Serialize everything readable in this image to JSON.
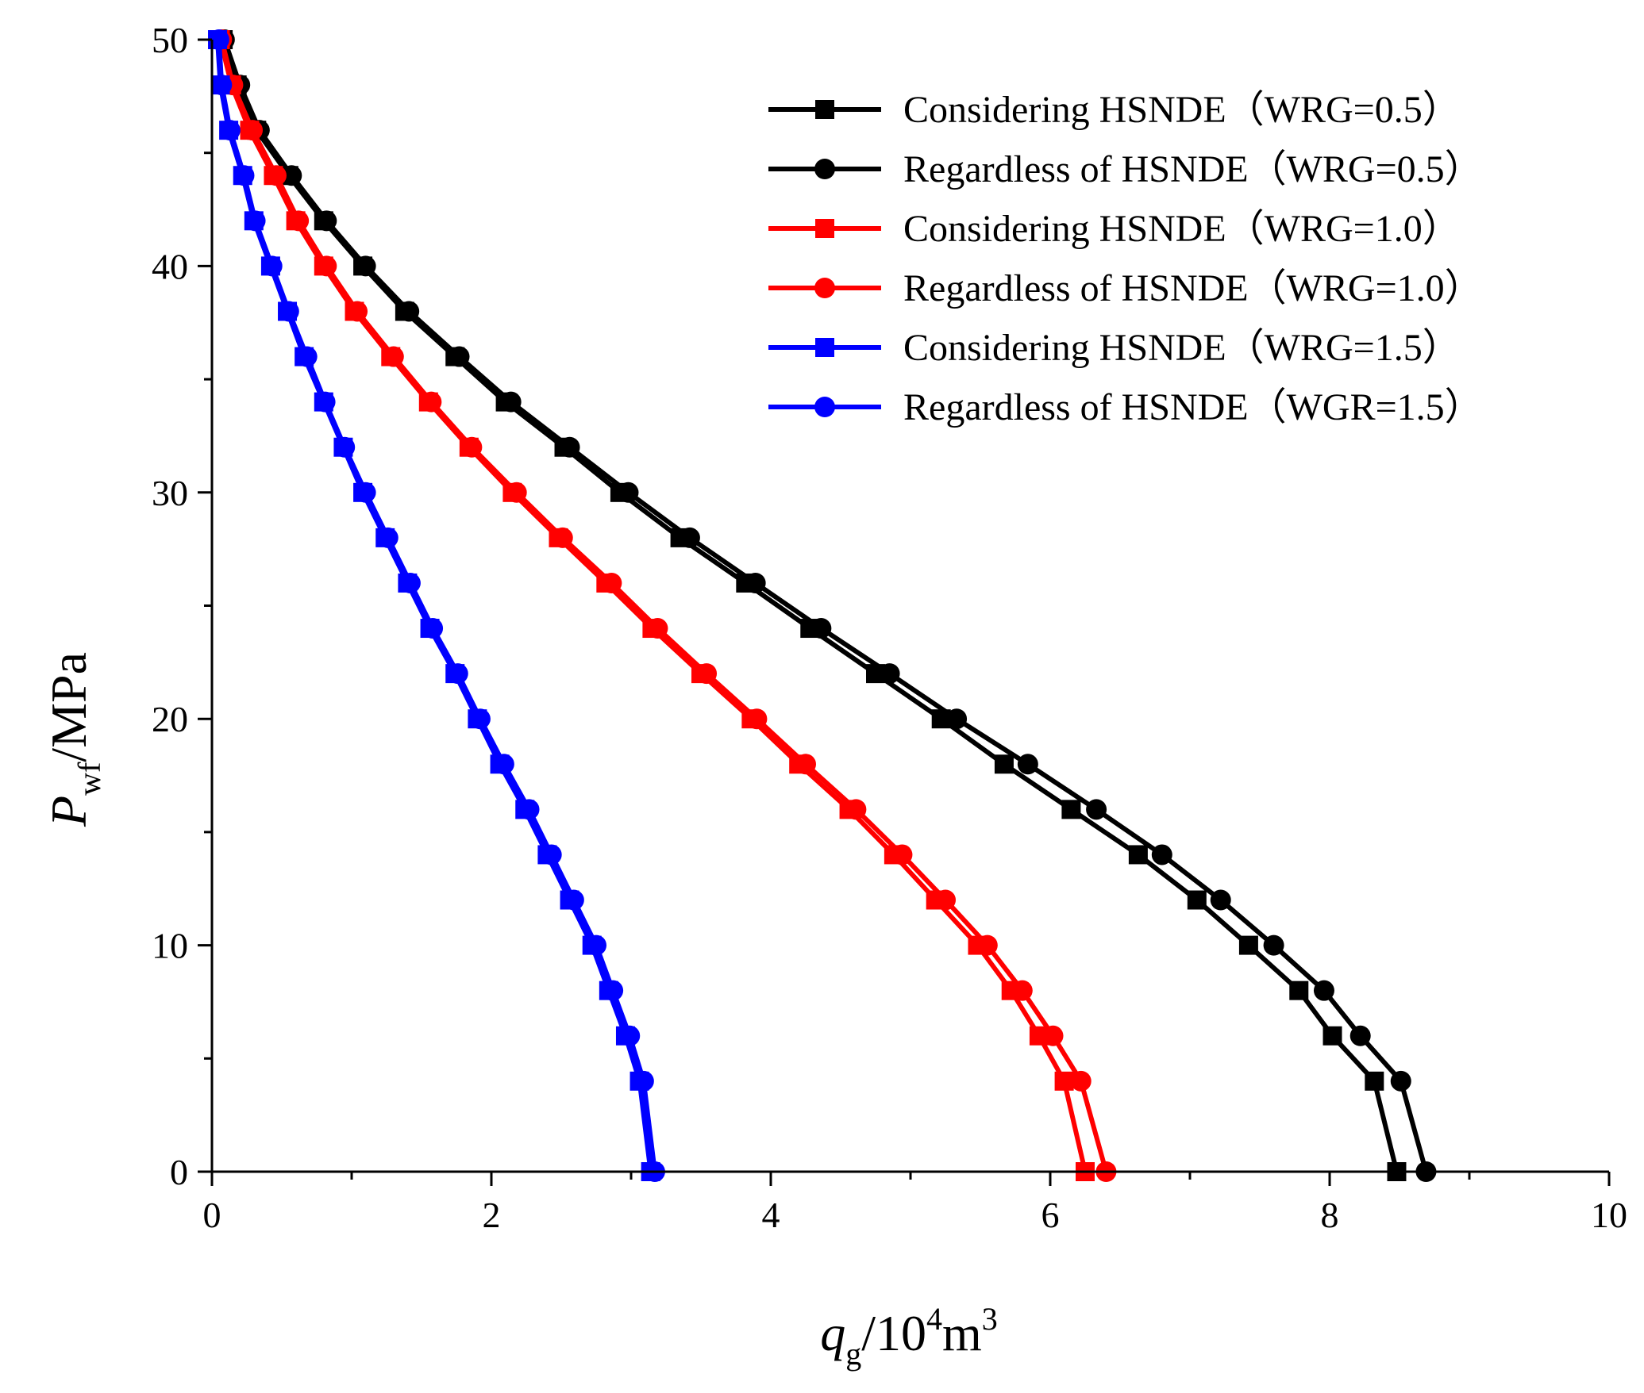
{
  "chart_data": {
    "type": "line",
    "title": "",
    "xlabel": {
      "main": "q",
      "sub": "g",
      "rest": "/10",
      "sup": "4",
      "unit": "m",
      "unit_sup": "3"
    },
    "ylabel": {
      "main": "P",
      "sub": "wf",
      "rest": "/MPa"
    },
    "xlim": [
      0,
      10
    ],
    "ylim": [
      0,
      50
    ],
    "xticks": [
      "0",
      "2",
      "4",
      "6",
      "8",
      "10"
    ],
    "yticks": [
      "0",
      "10",
      "20",
      "30",
      "40",
      "50"
    ],
    "legend_position": "top-right",
    "y": [
      50,
      48,
      46,
      44,
      42,
      40,
      38,
      36,
      34,
      32,
      30,
      28,
      26,
      24,
      22,
      20,
      18,
      16,
      14,
      12,
      10,
      8,
      6,
      4,
      0
    ],
    "series": [
      {
        "name": "Considering HSNDE（WRG=0.5）",
        "color": "#000000",
        "marker": "square",
        "x": [
          0.08,
          0.18,
          0.32,
          0.55,
          0.8,
          1.08,
          1.38,
          1.74,
          2.1,
          2.52,
          2.92,
          3.35,
          3.82,
          4.28,
          4.75,
          5.22,
          5.67,
          6.15,
          6.63,
          7.05,
          7.42,
          7.78,
          8.02,
          8.32,
          8.48
        ]
      },
      {
        "name": "Regardless of HSNDE（WRG=0.5）",
        "color": "#000000",
        "marker": "circle",
        "x": [
          0.09,
          0.2,
          0.34,
          0.57,
          0.82,
          1.1,
          1.41,
          1.77,
          2.14,
          2.56,
          2.98,
          3.42,
          3.89,
          4.36,
          4.85,
          5.33,
          5.84,
          6.33,
          6.8,
          7.22,
          7.6,
          7.96,
          8.22,
          8.51,
          8.69
        ]
      },
      {
        "name": "Considering HSNDE（WRG=1.0）",
        "color": "#ff0000",
        "marker": "square",
        "x": [
          0.06,
          0.14,
          0.27,
          0.44,
          0.6,
          0.8,
          1.02,
          1.28,
          1.55,
          1.84,
          2.15,
          2.48,
          2.82,
          3.15,
          3.5,
          3.86,
          4.2,
          4.56,
          4.88,
          5.18,
          5.48,
          5.72,
          5.92,
          6.1,
          6.25
        ]
      },
      {
        "name": "Regardless of HSNDE（WRG=1.0）",
        "color": "#ff0000",
        "marker": "circle",
        "x": [
          0.07,
          0.15,
          0.29,
          0.46,
          0.62,
          0.82,
          1.04,
          1.3,
          1.57,
          1.86,
          2.18,
          2.51,
          2.86,
          3.19,
          3.54,
          3.9,
          4.25,
          4.61,
          4.94,
          5.25,
          5.55,
          5.8,
          6.02,
          6.22,
          6.4
        ]
      },
      {
        "name": "Considering HSNDE（WRG=1.5）",
        "color": "#0000ff",
        "marker": "square",
        "x": [
          0.04,
          0.06,
          0.12,
          0.22,
          0.3,
          0.42,
          0.54,
          0.66,
          0.8,
          0.94,
          1.08,
          1.24,
          1.4,
          1.56,
          1.74,
          1.9,
          2.06,
          2.24,
          2.4,
          2.56,
          2.72,
          2.84,
          2.96,
          3.06,
          3.14
        ]
      },
      {
        "name": "Regardless of HSNDE（WGR=1.5）",
        "color": "#0000ff",
        "marker": "circle",
        "x": [
          0.05,
          0.07,
          0.13,
          0.23,
          0.31,
          0.43,
          0.55,
          0.68,
          0.81,
          0.95,
          1.1,
          1.26,
          1.42,
          1.58,
          1.76,
          1.92,
          2.09,
          2.27,
          2.43,
          2.59,
          2.75,
          2.87,
          2.99,
          3.09,
          3.17
        ]
      }
    ]
  }
}
